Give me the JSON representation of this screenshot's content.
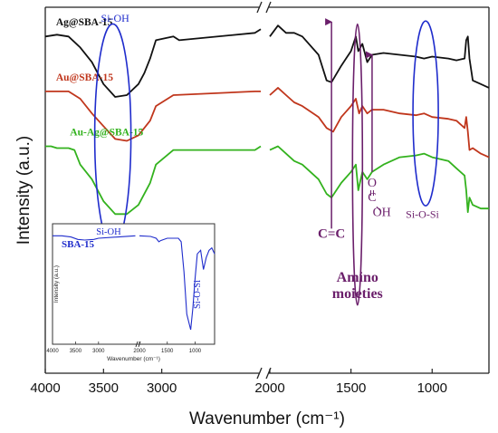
{
  "chart_data": [
    {
      "type": "line",
      "role": "main",
      "xlabel": "Wavenumber (cm⁻¹)",
      "ylabel": "Intensity (a.u.)",
      "x_reversed": true,
      "x_axis_break": [
        2150,
        2000
      ],
      "x_ticks": [
        {
          "value": 4000,
          "label": "4000"
        },
        {
          "value": 3500,
          "label": "3500"
        },
        {
          "value": 3000,
          "label": "3000"
        },
        {
          "value": 2000,
          "label": "2000"
        },
        {
          "value": 1500,
          "label": "1500"
        },
        {
          "value": 1000,
          "label": "1000"
        }
      ],
      "series": [
        {
          "name": "Ag@SBA-15",
          "color": "#111111",
          "points": [
            [
              4000,
              92
            ],
            [
              3900,
              92.5
            ],
            [
              3800,
              92
            ],
            [
              3700,
              89
            ],
            [
              3600,
              85
            ],
            [
              3500,
              79
            ],
            [
              3400,
              75.5
            ],
            [
              3300,
              76
            ],
            [
              3200,
              79
            ],
            [
              3150,
              82
            ],
            [
              3100,
              86
            ],
            [
              3050,
              91
            ],
            [
              2900,
              92
            ],
            [
              2850,
              91
            ],
            [
              2200,
              93
            ],
            [
              2150,
              94
            ],
            [
              2000,
              92
            ],
            [
              1950,
              95
            ],
            [
              1900,
              93
            ],
            [
              1850,
              93
            ],
            [
              1800,
              92
            ],
            [
              1700,
              87
            ],
            [
              1650,
              80
            ],
            [
              1620,
              79.5
            ],
            [
              1560,
              84
            ],
            [
              1500,
              88
            ],
            [
              1470,
              92
            ],
            [
              1455,
              88
            ],
            [
              1430,
              90
            ],
            [
              1400,
              85
            ],
            [
              1370,
              87
            ],
            [
              1300,
              87.5
            ],
            [
              1200,
              87
            ],
            [
              1100,
              86.5
            ],
            [
              1050,
              86
            ],
            [
              1000,
              86.5
            ],
            [
              900,
              86
            ],
            [
              850,
              85.5
            ],
            [
              800,
              86
            ],
            [
              790,
              91
            ],
            [
              780,
              92
            ],
            [
              770,
              86
            ],
            [
              750,
              80
            ],
            [
              700,
              79
            ],
            [
              650,
              78
            ]
          ]
        },
        {
          "name": "Au@SBA-15",
          "color": "#c0361c",
          "points": [
            [
              4000,
              77
            ],
            [
              3900,
              77
            ],
            [
              3800,
              77
            ],
            [
              3700,
              75
            ],
            [
              3600,
              71
            ],
            [
              3500,
              67.5
            ],
            [
              3400,
              64
            ],
            [
              3300,
              63.5
            ],
            [
              3200,
              65
            ],
            [
              3100,
              69
            ],
            [
              3050,
              73
            ],
            [
              2900,
              76
            ],
            [
              2200,
              77
            ],
            [
              2150,
              77
            ],
            [
              2000,
              76
            ],
            [
              1950,
              78
            ],
            [
              1900,
              76
            ],
            [
              1850,
              74
            ],
            [
              1800,
              73
            ],
            [
              1700,
              70
            ],
            [
              1650,
              67
            ],
            [
              1610,
              66
            ],
            [
              1560,
              70
            ],
            [
              1500,
              73
            ],
            [
              1470,
              75
            ],
            [
              1450,
              71
            ],
            [
              1430,
              73
            ],
            [
              1400,
              71
            ],
            [
              1370,
              72
            ],
            [
              1300,
              72
            ],
            [
              1200,
              71
            ],
            [
              1100,
              70.5
            ],
            [
              1050,
              71
            ],
            [
              1000,
              70
            ],
            [
              900,
              69.5
            ],
            [
              850,
              69
            ],
            [
              800,
              67
            ],
            [
              790,
              70
            ],
            [
              780,
              66
            ],
            [
              770,
              61
            ],
            [
              750,
              61.5
            ],
            [
              700,
              60
            ],
            [
              650,
              59
            ]
          ]
        },
        {
          "name": "Au-Ag@SBA-15",
          "color": "#33b21e",
          "points": [
            [
              4000,
              62
            ],
            [
              3950,
              62
            ],
            [
              3900,
              61.5
            ],
            [
              3800,
              61.5
            ],
            [
              3750,
              61
            ],
            [
              3700,
              57
            ],
            [
              3600,
              53
            ],
            [
              3500,
              47
            ],
            [
              3400,
              43.5
            ],
            [
              3300,
              43.5
            ],
            [
              3200,
              46
            ],
            [
              3100,
              52
            ],
            [
              3050,
              57
            ],
            [
              2900,
              61
            ],
            [
              2200,
              61
            ],
            [
              2150,
              62
            ],
            [
              2000,
              61
            ],
            [
              1950,
              62
            ],
            [
              1900,
              60
            ],
            [
              1850,
              58
            ],
            [
              1800,
              57
            ],
            [
              1700,
              53
            ],
            [
              1650,
              49
            ],
            [
              1620,
              48
            ],
            [
              1560,
              52
            ],
            [
              1500,
              55
            ],
            [
              1470,
              57
            ],
            [
              1455,
              50
            ],
            [
              1430,
              55
            ],
            [
              1400,
              53
            ],
            [
              1370,
              55
            ],
            [
              1300,
              57
            ],
            [
              1200,
              59
            ],
            [
              1100,
              59.5
            ],
            [
              1050,
              60
            ],
            [
              1000,
              59
            ],
            [
              900,
              58
            ],
            [
              850,
              56
            ],
            [
              800,
              54
            ],
            [
              790,
              50
            ],
            [
              780,
              44
            ],
            [
              770,
              48
            ],
            [
              750,
              46
            ],
            [
              700,
              45
            ],
            [
              650,
              45
            ]
          ]
        }
      ],
      "annotations": [
        {
          "text": "Si-OH",
          "x": 3400,
          "y": 96,
          "color": "#1f2ccc"
        },
        {
          "text": "C=C",
          "x": 1620,
          "y": 37,
          "color": "#6b1f6b"
        },
        {
          "text": "Amino",
          "x": 1460,
          "y": 25,
          "color": "#6b1f6b"
        },
        {
          "text": "moieties",
          "x": 1460,
          "y": 20.5,
          "color": "#6b1f6b"
        },
        {
          "text": "C",
          "x": 1370,
          "y": 47,
          "color": "#6b1f6b"
        },
        {
          "text": "O",
          "x": 1370,
          "y": 51,
          "color": "#6b1f6b"
        },
        {
          "text": "OH",
          "x": 1310,
          "y": 43,
          "color": "#6b1f6b"
        },
        {
          "text": "Si-O-Si",
          "x": 1060,
          "y": 42.5,
          "color": "#6b1f6b"
        }
      ],
      "ellipse_color": "#1f2ccc",
      "arrow_color": "#6b1f6b"
    },
    {
      "type": "line",
      "role": "inset",
      "xlabel": "Wavenumber (cm⁻¹)",
      "ylabel": "Intensity (a.u.)",
      "x_reversed": true,
      "x_ticks": [
        {
          "value": 4000,
          "label": "4000"
        },
        {
          "value": 3500,
          "label": "3500"
        },
        {
          "value": 3000,
          "label": "3000"
        },
        {
          "value": 2000,
          "label": "2000"
        },
        {
          "value": 1500,
          "label": "1500"
        },
        {
          "value": 1000,
          "label": "1000"
        }
      ],
      "series": [
        {
          "name": "SBA-15",
          "color": "#1f2ccc",
          "points": [
            [
              4000,
              90
            ],
            [
              3800,
              90
            ],
            [
              3600,
              89
            ],
            [
              3450,
              87
            ],
            [
              3300,
              86.5
            ],
            [
              3100,
              87
            ],
            [
              3000,
              88
            ],
            [
              2200,
              90
            ],
            [
              2000,
              90
            ],
            [
              1800,
              89.5
            ],
            [
              1700,
              88
            ],
            [
              1650,
              85
            ],
            [
              1620,
              86
            ],
            [
              1500,
              88
            ],
            [
              1400,
              88
            ],
            [
              1300,
              88
            ],
            [
              1250,
              85
            ],
            [
              1200,
              60
            ],
            [
              1150,
              25
            ],
            [
              1080,
              12
            ],
            [
              1040,
              30
            ],
            [
              1000,
              55
            ],
            [
              960,
              75
            ],
            [
              900,
              78
            ],
            [
              850,
              62
            ],
            [
              800,
              72
            ],
            [
              750,
              78
            ],
            [
              700,
              80
            ],
            [
              650,
              75
            ]
          ]
        }
      ],
      "annotations": [
        {
          "text": "Si-OH",
          "color": "#1f2ccc"
        },
        {
          "text": "SBA-15",
          "color": "#1f2ccc"
        },
        {
          "text": "Si-O-Si",
          "color": "#1f2ccc"
        }
      ]
    }
  ]
}
